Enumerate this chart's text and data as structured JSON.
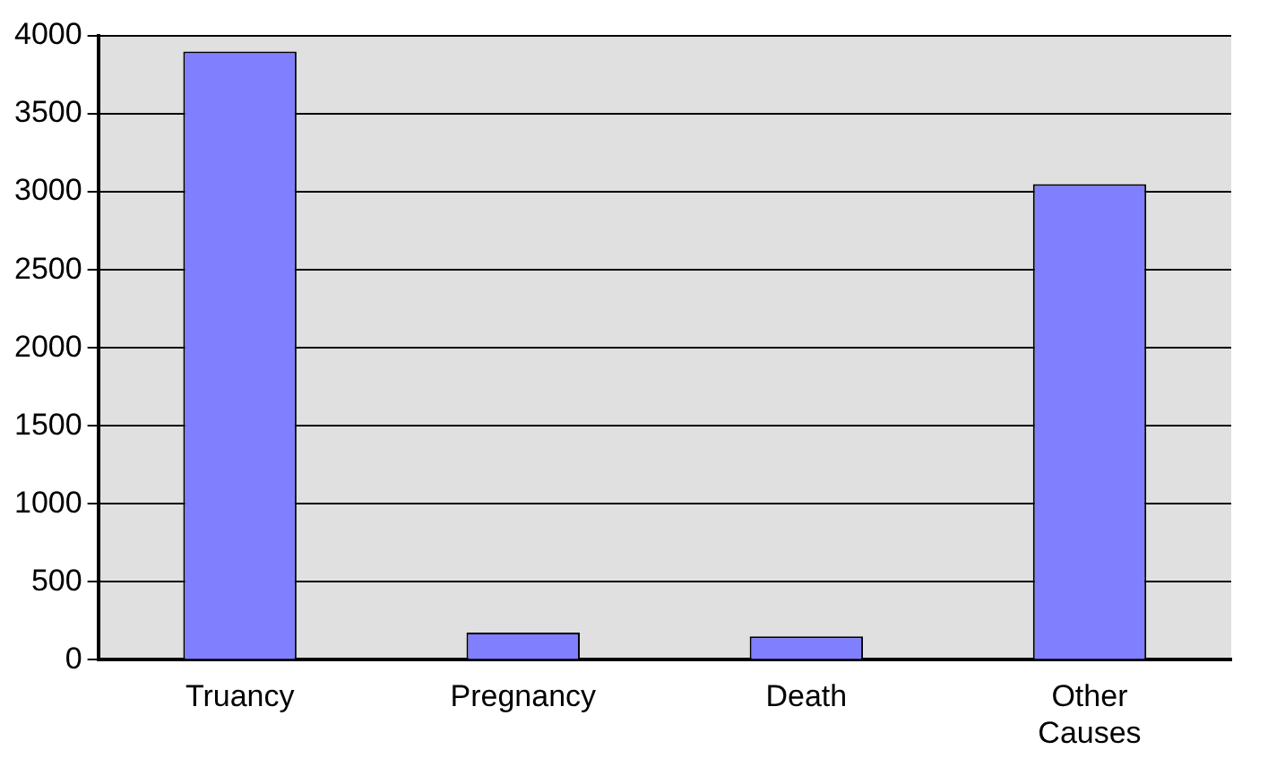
{
  "chart_data": {
    "type": "bar",
    "categories": [
      "Truancy",
      "Pregnancy",
      "Death",
      "Other Causes"
    ],
    "values": [
      3900,
      175,
      150,
      3050
    ],
    "color": "#8080ff",
    "ylim": [
      0,
      4000
    ],
    "yticks": [
      0,
      500,
      1000,
      1500,
      2000,
      2500,
      3000,
      3500,
      4000
    ],
    "grid": "y",
    "legend": false
  }
}
